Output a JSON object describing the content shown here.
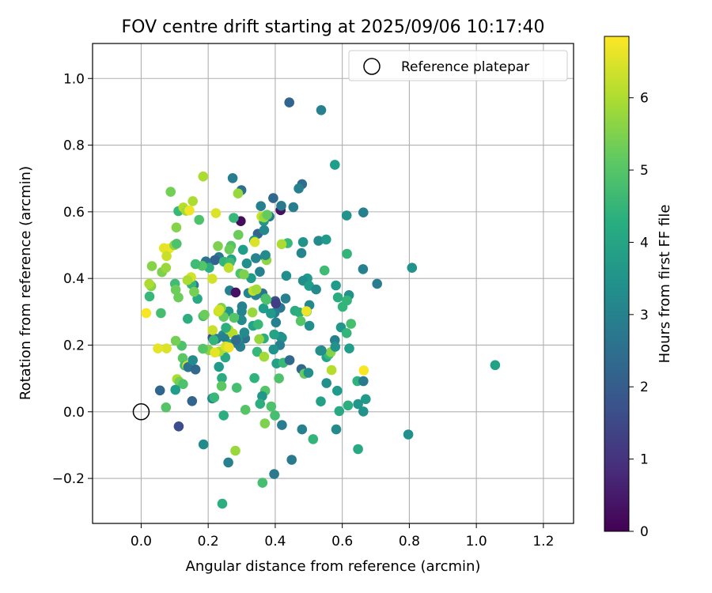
{
  "chart_data": {
    "type": "scatter",
    "title": "FOV centre drift starting at 2025/09/06 10:17:40",
    "xlabel": "Angular distance from reference (arcmin)",
    "ylabel": "Rotation from reference (arcmin)",
    "xlim": [
      -0.145,
      1.29
    ],
    "ylim": [
      -0.335,
      1.105
    ],
    "xticks": [
      "0.0",
      "0.2",
      "0.4",
      "0.6",
      "0.8",
      "1.0",
      "1.2"
    ],
    "xtick_values": [
      0,
      0.2,
      0.4,
      0.6,
      0.8,
      1.0,
      1.2
    ],
    "yticks": [
      "−0.2",
      "0.0",
      "0.2",
      "0.4",
      "0.6",
      "0.8",
      "1.0"
    ],
    "ytick_values": [
      -0.2,
      0,
      0.2,
      0.4,
      0.6,
      0.8,
      1.0
    ],
    "grid": true,
    "legend": {
      "position": "upper-right",
      "label": "Reference platepar"
    },
    "reference_point": {
      "x": 0.0,
      "y": 0.0
    },
    "colorbar": {
      "label": "Hours from first FF file",
      "colormap": "viridis",
      "range": [
        0,
        6.85
      ],
      "ticks": [
        "0",
        "1",
        "2",
        "3",
        "4",
        "5",
        "6"
      ],
      "tick_values": [
        0,
        1,
        2,
        3,
        4,
        5,
        6
      ]
    },
    "points": [
      [
        0.442,
        0.928,
        2.2
      ],
      [
        0.537,
        0.905,
        3.0
      ],
      [
        0.578,
        0.741,
        3.8
      ],
      [
        0.273,
        0.701,
        2.9
      ],
      [
        0.48,
        0.683,
        2.4
      ],
      [
        0.299,
        0.665,
        2.5
      ],
      [
        0.47,
        0.67,
        3.0
      ],
      [
        0.394,
        0.641,
        2.3
      ],
      [
        0.454,
        0.614,
        2.9
      ],
      [
        0.357,
        0.617,
        3.0
      ],
      [
        0.416,
        0.605,
        0.3
      ],
      [
        0.418,
        0.618,
        2.8
      ],
      [
        0.383,
        0.586,
        2.8
      ],
      [
        0.297,
        0.572,
        0.2
      ],
      [
        0.366,
        0.572,
        3.6
      ],
      [
        0.348,
        0.534,
        2.2
      ],
      [
        0.663,
        0.598,
        3.0
      ],
      [
        0.613,
        0.589,
        3.5
      ],
      [
        0.483,
        0.509,
        3.5
      ],
      [
        0.529,
        0.513,
        3.3
      ],
      [
        0.552,
        0.517,
        3.7
      ],
      [
        0.437,
        0.506,
        4.6
      ],
      [
        0.367,
        0.545,
        3.2
      ],
      [
        0.337,
        0.514,
        3.7
      ],
      [
        0.304,
        0.486,
        3.8
      ],
      [
        0.232,
        0.464,
        2.8
      ],
      [
        0.22,
        0.455,
        2.1
      ],
      [
        0.193,
        0.451,
        2.6
      ],
      [
        0.269,
        0.457,
        4.0
      ],
      [
        0.247,
        0.45,
        4.5
      ],
      [
        0.315,
        0.445,
        3.4
      ],
      [
        0.369,
        0.466,
        3.0
      ],
      [
        0.342,
        0.461,
        3.1
      ],
      [
        0.478,
        0.476,
        3.1
      ],
      [
        0.614,
        0.474,
        4.5
      ],
      [
        0.662,
        0.428,
        3.0
      ],
      [
        0.704,
        0.384,
        2.9
      ],
      [
        0.808,
        0.432,
        3.5
      ],
      [
        0.547,
        0.424,
        4.7
      ],
      [
        0.433,
        0.408,
        3.4
      ],
      [
        0.496,
        0.4,
        3.7
      ],
      [
        0.483,
        0.393,
        3.4
      ],
      [
        0.501,
        0.378,
        3.8
      ],
      [
        0.522,
        0.367,
        3.3
      ],
      [
        0.581,
        0.379,
        3.7
      ],
      [
        0.62,
        0.35,
        3.5
      ],
      [
        0.614,
        0.334,
        4.5
      ],
      [
        0.601,
        0.315,
        4.5
      ],
      [
        0.587,
        0.343,
        4.2
      ],
      [
        0.502,
        0.32,
        3.2
      ],
      [
        0.459,
        0.303,
        4.2
      ],
      [
        0.472,
        0.298,
        4.3
      ],
      [
        0.476,
        0.272,
        5.0
      ],
      [
        0.494,
        0.301,
        4.7
      ],
      [
        0.502,
        0.258,
        3.4
      ],
      [
        0.431,
        0.34,
        3.0
      ],
      [
        0.415,
        0.312,
        2.7
      ],
      [
        0.4,
        0.332,
        1.8
      ],
      [
        0.398,
        0.297,
        2.9
      ],
      [
        0.402,
        0.268,
        3.0
      ],
      [
        0.362,
        0.355,
        2.6
      ],
      [
        0.342,
        0.35,
        3.1
      ],
      [
        0.32,
        0.356,
        3.1
      ],
      [
        0.328,
        0.401,
        3.7
      ],
      [
        0.354,
        0.42,
        3.0
      ],
      [
        0.296,
        0.415,
        4.9
      ],
      [
        0.264,
        0.364,
        3.0
      ],
      [
        0.301,
        0.316,
        3.0
      ],
      [
        0.3,
        0.301,
        3.1
      ],
      [
        0.3,
        0.275,
        3.3
      ],
      [
        0.261,
        0.301,
        3.6
      ],
      [
        0.277,
        0.282,
        5.0
      ],
      [
        0.239,
        0.312,
        5.5
      ],
      [
        0.246,
        0.285,
        5.2
      ],
      [
        0.334,
        0.258,
        4.0
      ],
      [
        0.349,
        0.262,
        4.6
      ],
      [
        0.332,
        0.298,
        5.8
      ],
      [
        0.365,
        0.31,
        3.8
      ],
      [
        0.387,
        0.295,
        3.7
      ],
      [
        0.371,
        0.34,
        4.8
      ],
      [
        0.416,
        0.225,
        2.9
      ],
      [
        0.42,
        0.222,
        3.5
      ],
      [
        0.397,
        0.232,
        4.0
      ],
      [
        0.414,
        0.2,
        3.0
      ],
      [
        0.395,
        0.187,
        3.5
      ],
      [
        0.366,
        0.22,
        4.3
      ],
      [
        0.352,
        0.218,
        5.8
      ],
      [
        0.346,
        0.18,
        4.6
      ],
      [
        0.367,
        0.165,
        5.9
      ],
      [
        0.31,
        0.22,
        2.6
      ],
      [
        0.296,
        0.195,
        3.0
      ],
      [
        0.308,
        0.238,
        3.3
      ],
      [
        0.287,
        0.205,
        2.8
      ],
      [
        0.288,
        0.218,
        3.5
      ],
      [
        0.258,
        0.245,
        2.5
      ],
      [
        0.259,
        0.205,
        3.8
      ],
      [
        0.244,
        0.23,
        3.4
      ],
      [
        0.213,
        0.222,
        1.5
      ],
      [
        0.225,
        0.219,
        2.9
      ],
      [
        0.249,
        0.224,
        3.0
      ],
      [
        0.213,
        0.245,
        6.3
      ],
      [
        0.216,
        0.215,
        4.5
      ],
      [
        0.258,
        0.192,
        5.6
      ],
      [
        0.261,
        0.246,
        5.8
      ],
      [
        0.273,
        0.235,
        6.1
      ],
      [
        0.202,
        0.185,
        5.6
      ],
      [
        0.184,
        0.189,
        5.0
      ],
      [
        0.251,
        0.163,
        4.1
      ],
      [
        0.232,
        0.135,
        3.7
      ],
      [
        0.241,
        0.101,
        4.2
      ],
      [
        0.212,
        0.04,
        3.1
      ],
      [
        0.218,
        0.043,
        4.6
      ],
      [
        0.168,
        0.339,
        4.1
      ],
      [
        0.157,
        0.38,
        2.9
      ],
      [
        0.15,
        0.383,
        4.5
      ],
      [
        0.149,
        0.404,
        6.4
      ],
      [
        0.138,
        0.395,
        6.0
      ],
      [
        0.158,
        0.36,
        5.4
      ],
      [
        0.139,
        0.279,
        4.3
      ],
      [
        0.185,
        0.287,
        4.8
      ],
      [
        0.189,
        0.291,
        5.3
      ],
      [
        0.212,
        0.399,
        6.4
      ],
      [
        0.203,
        0.432,
        4.3
      ],
      [
        0.182,
        0.438,
        5.0
      ],
      [
        0.162,
        0.443,
        4.7
      ],
      [
        0.101,
        0.384,
        4.7
      ],
      [
        0.111,
        0.343,
        5.3
      ],
      [
        0.103,
        0.366,
        5.3
      ],
      [
        0.062,
        0.419,
        5.5
      ],
      [
        0.074,
        0.432,
        5.8
      ],
      [
        0.084,
        0.49,
        6.7
      ],
      [
        0.068,
        0.491,
        6.6
      ],
      [
        0.076,
        0.467,
        6.3
      ],
      [
        0.099,
        0.5,
        5.7
      ],
      [
        0.106,
        0.504,
        4.9
      ],
      [
        0.105,
        0.553,
        5.6
      ],
      [
        0.111,
        0.602,
        4.6
      ],
      [
        0.126,
        0.613,
        6.1
      ],
      [
        0.134,
        0.603,
        5.9
      ],
      [
        0.144,
        0.604,
        6.7
      ],
      [
        0.154,
        0.632,
        6.0
      ],
      [
        0.173,
        0.576,
        4.9
      ],
      [
        0.185,
        0.706,
        6.0
      ],
      [
        0.088,
        0.66,
        5.4
      ],
      [
        0.223,
        0.596,
        6.5
      ],
      [
        0.229,
        0.497,
        5.5
      ],
      [
        0.268,
        0.498,
        5.0
      ],
      [
        0.263,
        0.487,
        5.3
      ],
      [
        0.289,
        0.655,
        5.8
      ],
      [
        0.29,
        0.531,
        5.3
      ],
      [
        0.276,
        0.582,
        4.6
      ],
      [
        0.339,
        0.509,
        6.5
      ],
      [
        0.359,
        0.586,
        6.3
      ],
      [
        0.367,
        0.583,
        5.8
      ],
      [
        0.376,
        0.591,
        5.2
      ],
      [
        0.374,
        0.455,
        5.7
      ],
      [
        0.419,
        0.503,
        6.0
      ],
      [
        0.371,
        0.47,
        3.3
      ],
      [
        0.307,
        0.412,
        5.5
      ],
      [
        0.265,
        0.448,
        4.7
      ],
      [
        0.261,
        0.432,
        6.2
      ],
      [
        0.334,
        0.363,
        6.2
      ],
      [
        0.344,
        0.367,
        5.9
      ],
      [
        0.374,
        0.336,
        4.9
      ],
      [
        0.402,
        0.325,
        1.3
      ],
      [
        0.282,
        0.358,
        0.3
      ],
      [
        0.283,
        0.215,
        2.4
      ],
      [
        0.253,
        0.252,
        4.3
      ],
      [
        0.23,
        0.301,
        6.3
      ],
      [
        0.233,
        0.181,
        6.0
      ],
      [
        0.22,
        0.178,
        6.6
      ],
      [
        0.252,
        0.196,
        6.4
      ],
      [
        0.262,
        0.193,
        6.7
      ],
      [
        0.233,
        0.306,
        6.4
      ],
      [
        0.121,
        0.198,
        4.9
      ],
      [
        0.103,
        0.213,
        5.4
      ],
      [
        0.076,
        0.19,
        6.5
      ],
      [
        0.05,
        0.19,
        6.6
      ],
      [
        0.124,
        0.161,
        5.1
      ],
      [
        0.13,
        0.139,
        4.7
      ],
      [
        0.137,
        0.138,
        6.4
      ],
      [
        0.14,
        0.134,
        2.6
      ],
      [
        0.154,
        0.155,
        3.3
      ],
      [
        0.162,
        0.127,
        2.3
      ],
      [
        0.107,
        0.098,
        6.0
      ],
      [
        0.114,
        0.09,
        5.4
      ],
      [
        0.125,
        0.083,
        4.9
      ],
      [
        0.102,
        0.066,
        3.8
      ],
      [
        0.056,
        0.064,
        2.2
      ],
      [
        0.112,
        -0.044,
        1.6
      ],
      [
        0.152,
        0.032,
        2.2
      ],
      [
        0.074,
        0.013,
        5.0
      ],
      [
        0.015,
        0.296,
        6.8
      ],
      [
        0.025,
        0.346,
        4.6
      ],
      [
        0.03,
        0.377,
        5.6
      ],
      [
        0.024,
        0.384,
        6.0
      ],
      [
        0.032,
        0.437,
        5.6
      ],
      [
        0.059,
        0.296,
        4.8
      ],
      [
        0.186,
        -0.098,
        3.3
      ],
      [
        0.24,
        0.077,
        5.1
      ],
      [
        0.246,
        -0.011,
        4.3
      ],
      [
        0.285,
        0.072,
        4.8
      ],
      [
        0.281,
        -0.117,
        5.8
      ],
      [
        0.26,
        -0.152,
        3.0
      ],
      [
        0.242,
        -0.276,
        4.3
      ],
      [
        0.362,
        -0.213,
        4.8
      ],
      [
        0.388,
        0.016,
        4.9
      ],
      [
        0.399,
        -0.011,
        4.8
      ],
      [
        0.37,
        0.063,
        5.0
      ],
      [
        0.361,
        0.047,
        3.6
      ],
      [
        0.355,
        0.024,
        4.3
      ],
      [
        0.338,
        0.101,
        4.4
      ],
      [
        0.369,
        -0.035,
        5.5
      ],
      [
        0.397,
        -0.187,
        2.8
      ],
      [
        0.42,
        -0.04,
        2.9
      ],
      [
        0.449,
        -0.144,
        2.8
      ],
      [
        0.311,
        0.006,
        5.0
      ],
      [
        0.404,
        0.145,
        3.9
      ],
      [
        0.411,
        0.1,
        4.9
      ],
      [
        0.424,
        0.147,
        4.6
      ],
      [
        0.478,
        0.128,
        2.3
      ],
      [
        0.487,
        0.114,
        5.2
      ],
      [
        0.499,
        0.117,
        3.4
      ],
      [
        0.48,
        -0.053,
        3.0
      ],
      [
        0.513,
        -0.082,
        4.5
      ],
      [
        0.536,
        0.031,
        3.9
      ],
      [
        0.553,
        0.086,
        3.4
      ],
      [
        0.553,
        0.164,
        4.0
      ],
      [
        0.56,
        0.172,
        4.6
      ],
      [
        0.566,
        0.179,
        5.6
      ],
      [
        0.538,
        0.184,
        3.1
      ],
      [
        0.534,
        0.183,
        3.4
      ],
      [
        0.578,
        0.215,
        3.0
      ],
      [
        0.579,
        0.195,
        3.5
      ],
      [
        0.596,
        0.253,
        3.6
      ],
      [
        0.621,
        0.19,
        3.8
      ],
      [
        0.613,
        0.236,
        4.5
      ],
      [
        0.626,
        0.264,
        4.8
      ],
      [
        0.568,
        0.125,
        6.1
      ],
      [
        0.585,
        0.063,
        3.7
      ],
      [
        0.591,
        0.002,
        4.1
      ],
      [
        0.582,
        -0.053,
        3.3
      ],
      [
        0.617,
        0.019,
        4.3
      ],
      [
        0.645,
        0.092,
        4.4
      ],
      [
        0.647,
        0.023,
        3.6
      ],
      [
        0.647,
        -0.112,
        4.1
      ],
      [
        0.663,
        0.001,
        3.5
      ],
      [
        0.67,
        0.038,
        3.7
      ],
      [
        0.663,
        0.092,
        2.8
      ],
      [
        0.664,
        0.124,
        6.8
      ],
      [
        0.797,
        -0.068,
        3.4
      ],
      [
        1.056,
        0.14,
        3.9
      ],
      [
        0.493,
        0.302,
        6.7
      ],
      [
        0.443,
        0.155,
        2.3
      ]
    ]
  }
}
